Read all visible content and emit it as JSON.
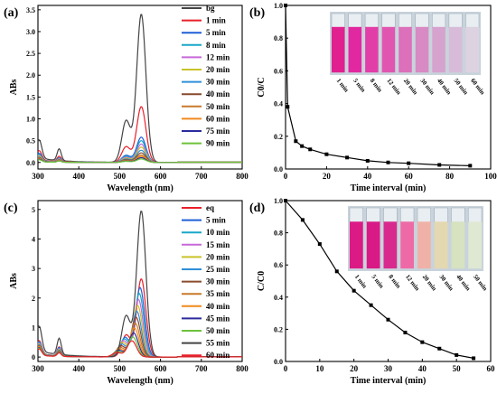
{
  "chart_data": [
    {
      "panel_label": "(a)",
      "type": "line",
      "xlabel": "Wavelength (nm)",
      "ylabel": "ABs",
      "xlim": [
        300,
        800
      ],
      "ylim": [
        -0.15,
        3.6
      ],
      "xticks": [
        "300",
        "400",
        "500",
        "600",
        "700",
        "800"
      ],
      "yticks": [
        "0.0",
        "0.5",
        "1.0",
        "1.5",
        "2.0",
        "2.5",
        "3.0",
        "3.5"
      ],
      "legend": "top-right",
      "series": [
        {
          "name": "bg",
          "color": "#444444",
          "peak": 3.4,
          "uv1": 0.42,
          "uv2": 0.27
        },
        {
          "name": "1 min",
          "color": "#e8202a",
          "peak": 1.28,
          "uv1": 0.22,
          "uv2": 0.12
        },
        {
          "name": "5 min",
          "color": "#1f5fd6",
          "peak": 0.58,
          "uv1": 0.17,
          "uv2": 0.09
        },
        {
          "name": "8 min",
          "color": "#19a7c8",
          "peak": 0.5,
          "uv1": 0.15,
          "uv2": 0.08
        },
        {
          "name": "12 min",
          "color": "#c86ad8",
          "peak": 0.42,
          "uv1": 0.13,
          "uv2": 0.07
        },
        {
          "name": "20 min",
          "color": "#c9c22a",
          "peak": 0.35,
          "uv1": 0.12,
          "uv2": 0.06
        },
        {
          "name": "30 min",
          "color": "#2e8fd8",
          "peak": 0.28,
          "uv1": 0.1,
          "uv2": 0.05
        },
        {
          "name": "40 min",
          "color": "#8a4b2c",
          "peak": 0.22,
          "uv1": 0.09,
          "uv2": 0.05
        },
        {
          "name": "50 min",
          "color": "#c77a2a",
          "peak": 0.17,
          "uv1": 0.08,
          "uv2": 0.04
        },
        {
          "name": "60 min",
          "color": "#f08a1c",
          "peak": 0.14,
          "uv1": 0.07,
          "uv2": 0.04
        },
        {
          "name": "75 min",
          "color": "#2b2b9c",
          "peak": 0.11,
          "uv1": 0.06,
          "uv2": 0.03
        },
        {
          "name": "90 min",
          "color": "#6cc23a",
          "peak": 0.08,
          "uv1": 0.05,
          "uv2": 0.03
        }
      ]
    },
    {
      "panel_label": "(b)",
      "type": "line",
      "xlabel": "Time interval (min)",
      "ylabel": "C0/C",
      "xlim": [
        0,
        100
      ],
      "ylim": [
        0,
        1.0
      ],
      "xticks": [
        "0",
        "20",
        "40",
        "60",
        "80",
        "100"
      ],
      "yticks": [
        "0.0",
        "0.2",
        "0.4",
        "0.6",
        "0.8",
        "1.0"
      ],
      "series": [
        {
          "name": "",
          "color": "#000000",
          "x": [
            0,
            1,
            5,
            8,
            12,
            20,
            30,
            40,
            50,
            60,
            75,
            90
          ],
          "y": [
            1.0,
            0.38,
            0.17,
            0.14,
            0.12,
            0.09,
            0.07,
            0.05,
            0.04,
            0.035,
            0.025,
            0.02
          ]
        }
      ],
      "inset": {
        "labels": [
          "1 min",
          "5 min",
          "8 min",
          "12 min",
          "20 min",
          "30 min",
          "40 min",
          "50 min",
          "60 min"
        ],
        "colors": [
          "#e0208f",
          "#e228a0",
          "#e23ea8",
          "#e055b0",
          "#dc70ba",
          "#d78ac4",
          "#d6a2ce",
          "#d8bbd8",
          "#dcd2e0"
        ]
      }
    },
    {
      "panel_label": "(c)",
      "type": "line",
      "xlabel": "Wavelength (nm)",
      "ylabel": "ABs",
      "xlim": [
        300,
        800
      ],
      "ylim": [
        -0.15,
        5.3
      ],
      "xticks": [
        "300",
        "400",
        "500",
        "600",
        "700",
        "800"
      ],
      "yticks": [
        "0",
        "1",
        "2",
        "3",
        "4",
        "5"
      ],
      "legend": "top-right",
      "series": [
        {
          "name": "eq",
          "color": "#e8202a",
          "peak": 2.65,
          "shift": 0,
          "uv1": 0.45,
          "uv2": 0.3
        },
        {
          "name": "5 min",
          "color": "#1f5fd6",
          "peak": 2.35,
          "shift": 3,
          "uv1": 0.42,
          "uv2": 0.28
        },
        {
          "name": "10 min",
          "color": "#19a7c8",
          "peak": 2.15,
          "shift": 5,
          "uv1": 0.4,
          "uv2": 0.26
        },
        {
          "name": "15 min",
          "color": "#c86ad8",
          "peak": 1.95,
          "shift": 7,
          "uv1": 0.38,
          "uv2": 0.24
        },
        {
          "name": "20 min",
          "color": "#c9c22a",
          "peak": 1.75,
          "shift": 9,
          "uv1": 0.36,
          "uv2": 0.22
        },
        {
          "name": "25 min",
          "color": "#2e8fd8",
          "peak": 1.55,
          "shift": 11,
          "uv1": 0.34,
          "uv2": 0.2
        },
        {
          "name": "30 min",
          "color": "#8a4b2c",
          "peak": 1.35,
          "shift": 13,
          "uv1": 0.32,
          "uv2": 0.18
        },
        {
          "name": "35 min",
          "color": "#c77a2a",
          "peak": 1.15,
          "shift": 15,
          "uv1": 0.3,
          "uv2": 0.16
        },
        {
          "name": "40 min",
          "color": "#f08a1c",
          "peak": 0.98,
          "shift": 17,
          "uv1": 0.28,
          "uv2": 0.15
        },
        {
          "name": "45 min",
          "color": "#2b2b9c",
          "peak": 0.82,
          "shift": 19,
          "uv1": 0.26,
          "uv2": 0.14
        },
        {
          "name": "50 min",
          "color": "#6cc23a",
          "peak": 0.68,
          "shift": 21,
          "uv1": 0.24,
          "uv2": 0.13
        },
        {
          "name": "55 min",
          "color": "#444444",
          "peak": 4.95,
          "shift": 0,
          "uv1": 0.85,
          "uv2": 0.55
        },
        {
          "name": "60 min",
          "color": "#e8202a",
          "peak": 0.55,
          "shift": 23,
          "uv1": 0.22,
          "uv2": 0.12
        }
      ]
    },
    {
      "panel_label": "(d)",
      "type": "line",
      "xlabel": "Time interval (min)",
      "ylabel": "C/C0",
      "xlim": [
        0,
        60
      ],
      "ylim": [
        0,
        1.0
      ],
      "xticks": [
        "0",
        "10",
        "20",
        "30",
        "40",
        "50",
        "60"
      ],
      "yticks": [
        "0.0",
        "0.2",
        "0.4",
        "0.6",
        "0.8",
        "1.0"
      ],
      "series": [
        {
          "name": "",
          "color": "#000000",
          "x": [
            0,
            5,
            10,
            15,
            20,
            25,
            30,
            35,
            40,
            45,
            50,
            55
          ],
          "y": [
            1.0,
            0.88,
            0.73,
            0.56,
            0.44,
            0.35,
            0.26,
            0.18,
            0.12,
            0.08,
            0.04,
            0.02
          ]
        }
      ],
      "inset": {
        "labels": [
          "1 min",
          "5 min",
          "8 min",
          "12 min",
          "20 min",
          "30 min",
          "40 min",
          "50 min"
        ],
        "colors": [
          "#dc1a86",
          "#d91a86",
          "#d82a8e",
          "#ee6aa6",
          "#f0b2a8",
          "#e4d8b0",
          "#d6e2c0",
          "#dfe8d2"
        ]
      }
    }
  ]
}
